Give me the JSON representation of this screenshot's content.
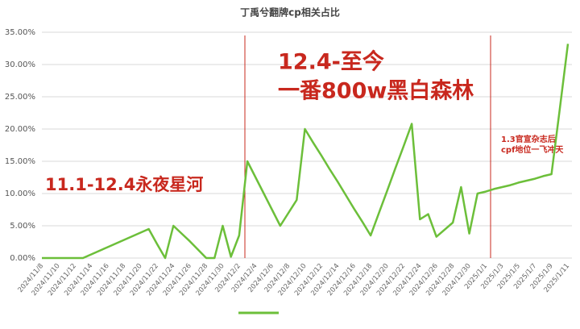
{
  "chart_data": {
    "type": "line",
    "title": "丁禹兮翻牌cp相关占比",
    "categories": [
      "2024/11/8",
      null,
      "2024/11/10",
      null,
      "2024/11/12",
      null,
      "2024/11/14",
      null,
      "2024/11/16",
      null,
      "2024/11/18",
      null,
      "2024/11/20",
      null,
      "2024/11/22",
      null,
      "2024/11/24",
      null,
      "2024/11/26",
      null,
      "2024/11/28",
      null,
      "2024/11/30",
      null,
      "2024/12/2",
      null,
      "2024/12/4",
      null,
      "2024/12/6",
      null,
      "2024/12/8",
      null,
      "2024/12/10",
      null,
      "2024/12/12",
      null,
      "2024/12/14",
      null,
      "2024/12/16",
      null,
      "2024/12/18",
      null,
      "2024/12/20",
      null,
      "2024/12/22",
      null,
      "2024/12/24",
      null,
      "2024/12/26",
      null,
      "2024/12/28",
      null,
      "2024/12/30",
      null,
      "2025/1/1",
      null,
      "2025/1/3",
      null,
      "2025/1/5",
      null,
      "2025/1/7",
      null,
      "2025/1/9",
      null,
      "2025/1/11"
    ],
    "series": [
      {
        "color": "#6cbf3a",
        "values": [
          0,
          0,
          0,
          0,
          0,
          0,
          0.56,
          1.13,
          1.69,
          2.25,
          2.81,
          3.38,
          3.94,
          4.5,
          2.2,
          0,
          5,
          3.8,
          2.6,
          1.3,
          0,
          0,
          5,
          0.2,
          3.5,
          15,
          12.5,
          10,
          7.5,
          5,
          7,
          9,
          20,
          17.9,
          15.9,
          13.8,
          11.8,
          9.7,
          7.6,
          5.6,
          3.5,
          6.96,
          10.4,
          13.9,
          17.3,
          20.8,
          6,
          6.8,
          3.3,
          4.4,
          5.5,
          11,
          3.8,
          10,
          10.3,
          10.7,
          11,
          11.3,
          11.7,
          12,
          12.3,
          12.7,
          13,
          23,
          33.2
        ]
      }
    ],
    "ylim": [
      0,
      35
    ],
    "yticks": [
      {
        "value": 0,
        "label": "0.00%"
      },
      {
        "value": 5,
        "label": "5.00%"
      },
      {
        "value": 10,
        "label": "10.00%"
      },
      {
        "value": 15,
        "label": "15.00%"
      },
      {
        "value": 20,
        "label": "20.00%"
      },
      {
        "value": 25,
        "label": "25.00%"
      },
      {
        "value": 30,
        "label": "30.00%"
      },
      {
        "value": 35,
        "label": "35.00%"
      }
    ],
    "grid": true,
    "annotations": [
      "11.1-12.4永夜星河",
      "12.4-至今",
      "一番800w黑白森林",
      "1.3官宣杂志后",
      "cpf地位一飞冲天"
    ]
  }
}
